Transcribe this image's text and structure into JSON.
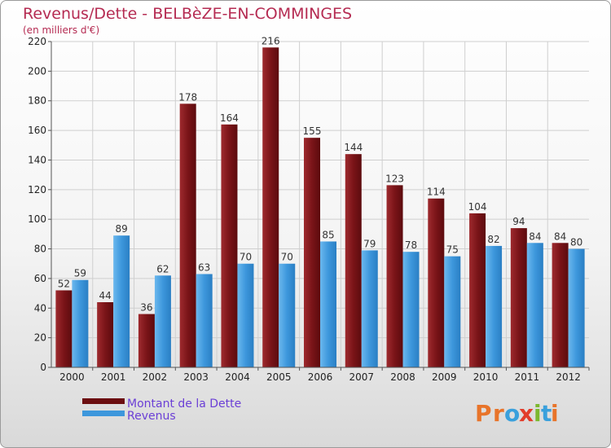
{
  "title": "Revenus/Dette - BELBèZE-EN-COMMINGES",
  "subtitle": "(en milliers d'€)",
  "logo": {
    "text": "Proxiti",
    "letters": [
      "P",
      "r",
      "o",
      "x",
      "i",
      "t",
      "i"
    ],
    "colors": [
      "#e8742a",
      "#e8742a",
      "#3aa0dc",
      "#e23c2a",
      "#7cb82f",
      "#3aa0dc",
      "#e8742a"
    ]
  },
  "chart_data": {
    "type": "bar",
    "categories": [
      "2000",
      "2001",
      "2002",
      "2003",
      "2004",
      "2005",
      "2006",
      "2007",
      "2008",
      "2009",
      "2010",
      "2011",
      "2012"
    ],
    "series": [
      {
        "name": "Montant de la Dette",
        "color": "#7a1216",
        "values": [
          52,
          44,
          36,
          178,
          164,
          216,
          155,
          144,
          123,
          114,
          104,
          94,
          84
        ]
      },
      {
        "name": "Revenus",
        "color": "#3d97dc",
        "values": [
          59,
          89,
          62,
          63,
          70,
          70,
          85,
          79,
          78,
          75,
          82,
          84,
          80
        ]
      }
    ],
    "ylim": [
      0,
      220
    ],
    "yticks": [
      0,
      20,
      40,
      60,
      80,
      100,
      120,
      140,
      160,
      180,
      200,
      220
    ],
    "grid": true,
    "legend": "bottom-left"
  }
}
